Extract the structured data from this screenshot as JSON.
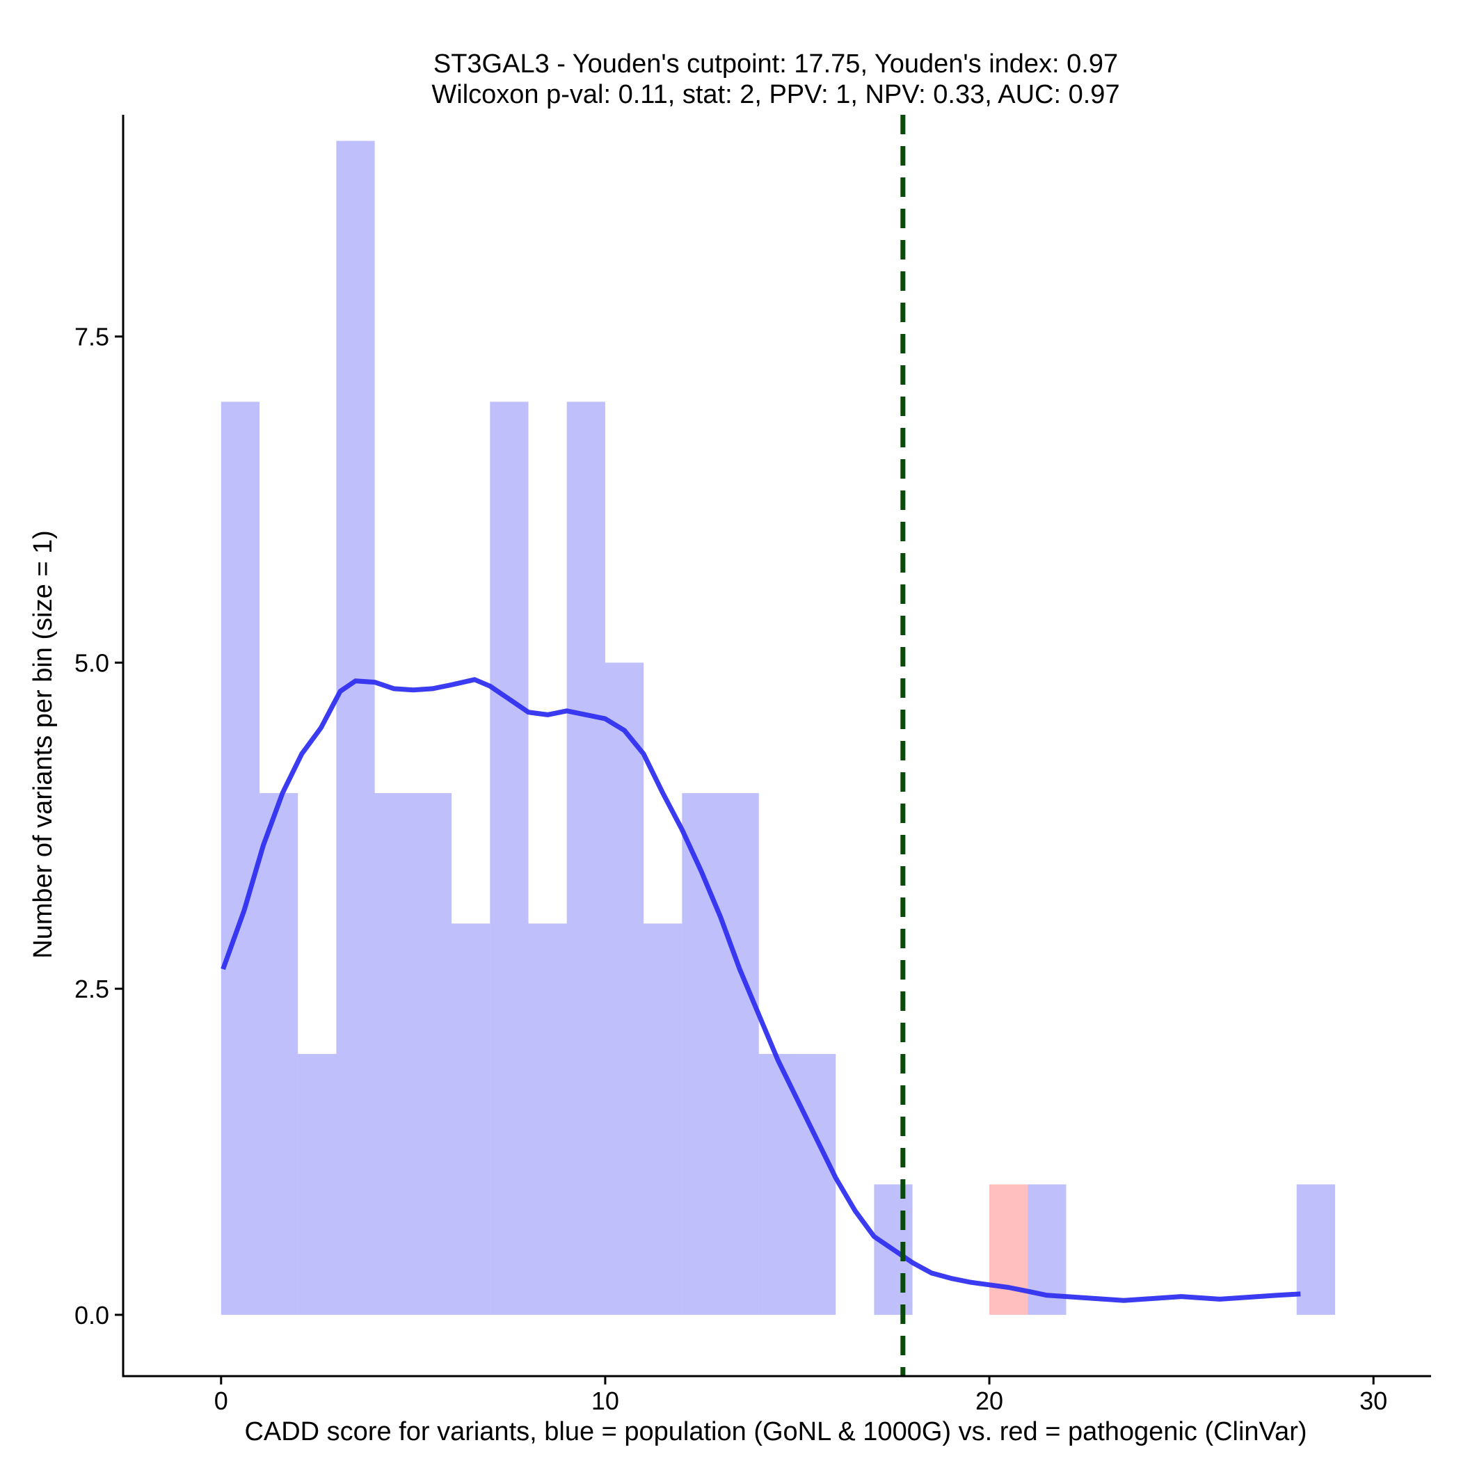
{
  "chart_data": {
    "type": "bar",
    "title": "ST3GAL3 - Youden's cutpoint: 17.75, Youden's index: 0.97",
    "subtitle": "Wilcoxon p-val: 0.11, stat: 2, PPV: 1, NPV: 0.33, AUC: 0.97",
    "xlabel": "CADD score for variants, blue = population (GoNL & 1000G) vs. red = pathogenic (ClinVar)",
    "ylabel": "Number of variants per bin (size = 1)",
    "xlim": [
      -2.55,
      31.5
    ],
    "ylim": [
      -0.47,
      9.2
    ],
    "x_ticks": [
      0,
      10,
      20,
      30
    ],
    "x_tick_labels": [
      "0",
      "10",
      "20",
      "30"
    ],
    "y_ticks": [
      0,
      2.5,
      5,
      7.5
    ],
    "y_tick_labels": [
      "0.0",
      "2.5",
      "5.0",
      "7.5"
    ],
    "bin_width": 1,
    "cutpoint": 17.75,
    "series": [
      {
        "name": "population (GoNL & 1000G)",
        "color": "#8080f8",
        "opacity": 0.5,
        "bins": [
          {
            "x0": 0,
            "count": 7
          },
          {
            "x0": 1,
            "count": 4
          },
          {
            "x0": 2,
            "count": 2
          },
          {
            "x0": 3,
            "count": 9
          },
          {
            "x0": 4,
            "count": 4
          },
          {
            "x0": 5,
            "count": 4
          },
          {
            "x0": 6,
            "count": 3
          },
          {
            "x0": 7,
            "count": 7
          },
          {
            "x0": 8,
            "count": 3
          },
          {
            "x0": 9,
            "count": 7
          },
          {
            "x0": 10,
            "count": 5
          },
          {
            "x0": 11,
            "count": 3
          },
          {
            "x0": 12,
            "count": 4
          },
          {
            "x0": 13,
            "count": 4
          },
          {
            "x0": 14,
            "count": 2
          },
          {
            "x0": 15,
            "count": 2
          },
          {
            "x0": 17,
            "count": 1
          },
          {
            "x0": 21,
            "count": 1
          },
          {
            "x0": 28,
            "count": 1
          }
        ]
      },
      {
        "name": "pathogenic (ClinVar)",
        "color": "#ff8080",
        "opacity": 0.5,
        "bins": [
          {
            "x0": 20,
            "count": 1
          }
        ]
      }
    ],
    "density_line": {
      "color": "#3030f0",
      "x": [
        0.05,
        0.6,
        1.1,
        1.6,
        2.1,
        2.6,
        3.1,
        3.5,
        4.0,
        4.5,
        5.0,
        5.5,
        6.0,
        6.6,
        7.0,
        7.5,
        8.0,
        8.5,
        9.0,
        9.5,
        10.0,
        10.5,
        11.0,
        11.5,
        12.0,
        12.5,
        13.0,
        13.5,
        14.0,
        14.5,
        15.0,
        15.5,
        16.0,
        16.5,
        17.0,
        17.5,
        18.0,
        18.5,
        19.0,
        19.5,
        20.0,
        20.5,
        21.0,
        21.5,
        22.0,
        22.5,
        23.0,
        23.5,
        24.0,
        24.5,
        25.0,
        25.5,
        26.0,
        26.5,
        27.0,
        27.5,
        28.1
      ],
      "y": [
        2.65,
        3.1,
        3.6,
        4.0,
        4.3,
        4.5,
        4.78,
        4.86,
        4.85,
        4.8,
        4.79,
        4.8,
        4.83,
        4.87,
        4.82,
        4.72,
        4.62,
        4.6,
        4.63,
        4.6,
        4.57,
        4.48,
        4.3,
        4.0,
        3.72,
        3.4,
        3.05,
        2.65,
        2.3,
        1.95,
        1.65,
        1.35,
        1.05,
        0.8,
        0.6,
        0.5,
        0.4,
        0.32,
        0.28,
        0.25,
        0.23,
        0.21,
        0.18,
        0.15,
        0.14,
        0.13,
        0.12,
        0.11,
        0.12,
        0.13,
        0.14,
        0.13,
        0.12,
        0.13,
        0.14,
        0.15,
        0.16
      ]
    },
    "cutpoint_line": {
      "color": "#0a4a0a",
      "style": "dashed"
    },
    "grid": false,
    "legend": "none"
  }
}
